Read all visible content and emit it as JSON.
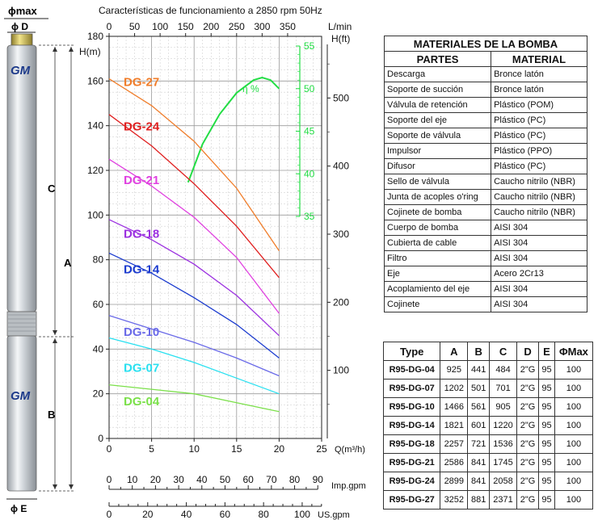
{
  "pump": {
    "labels": {
      "phi_max": "ϕmax",
      "phi_d": "ϕ D",
      "a": "A",
      "b": "B",
      "c": "C",
      "phi_e": "ϕ E",
      "logo": "GM"
    }
  },
  "chart_data": {
    "type": "line",
    "title": "Características de funcionamiento a 2850 rpm 50Hz",
    "ylabel_left": "H(m)",
    "ylabel_right": "H(ft)",
    "xlabel_bottom": "Q(m³/h)",
    "xlabel_top": "L/min",
    "xlabel_imp": "Imp.gpm",
    "xlabel_us": "US.gpm",
    "efficiency_label": "η %",
    "xlim": [
      0,
      25
    ],
    "ylim": [
      0,
      180
    ],
    "x_ticks": [
      0,
      5,
      10,
      15,
      20,
      25
    ],
    "y_ticks": [
      0,
      20,
      40,
      60,
      80,
      100,
      120,
      140,
      160,
      180
    ],
    "lmin_ticks": [
      "0",
      "50",
      "100",
      "150",
      "200",
      "250",
      "300",
      "350"
    ],
    "ft_ticks": [
      "100",
      "200",
      "300",
      "400",
      "500"
    ],
    "eff_ticks": [
      "35",
      "40",
      "45",
      "50",
      "55"
    ],
    "imp_ticks": [
      "0",
      "10",
      "20",
      "30",
      "40",
      "50",
      "60",
      "70",
      "80",
      "90"
    ],
    "us_ticks": [
      "0",
      "20",
      "40",
      "60",
      "80",
      "100"
    ],
    "series": [
      {
        "name": "DG-27",
        "color": "#f07d2a",
        "x": [
          0,
          5,
          10,
          15,
          20
        ],
        "y": [
          161,
          149,
          133,
          112,
          84
        ]
      },
      {
        "name": "DG-24",
        "color": "#e02020",
        "x": [
          0,
          5,
          10,
          15,
          20
        ],
        "y": [
          145,
          131,
          114,
          95,
          72
        ]
      },
      {
        "name": "DG-21",
        "color": "#e040e0",
        "x": [
          0,
          5,
          10,
          15,
          20
        ],
        "y": [
          125,
          113,
          99,
          81,
          56
        ]
      },
      {
        "name": "DG-18",
        "color": "#9b30e0",
        "x": [
          0,
          5,
          10,
          15,
          20
        ],
        "y": [
          98,
          89,
          78,
          64,
          46
        ]
      },
      {
        "name": "DG-14",
        "color": "#1c3ccf",
        "x": [
          0,
          5,
          10,
          15,
          20
        ],
        "y": [
          83,
          74,
          63,
          51,
          36
        ]
      },
      {
        "name": "DG-10",
        "color": "#6a6ae8",
        "x": [
          0,
          5,
          10,
          15,
          20
        ],
        "y": [
          55,
          49,
          43,
          36,
          28
        ]
      },
      {
        "name": "DG-07",
        "color": "#29e0f0",
        "x": [
          0,
          5,
          10,
          15,
          20
        ],
        "y": [
          45,
          40,
          34,
          27,
          20
        ]
      },
      {
        "name": "DG-04",
        "color": "#7be04a",
        "x": [
          0,
          5,
          10,
          15,
          20
        ],
        "y": [
          24,
          22,
          20,
          16,
          12
        ]
      }
    ],
    "efficiency": {
      "color": "#22dd44",
      "x": [
        9.3,
        11,
        13,
        15,
        17,
        18,
        19,
        20
      ],
      "eff": [
        39,
        43.5,
        47,
        49.5,
        51,
        51.3,
        51,
        50
      ]
    }
  },
  "materials": {
    "title": "MATERIALES DE LA BOMBA",
    "headers": [
      "PARTES",
      "MATERIAL"
    ],
    "rows": [
      [
        "Descarga",
        "Bronce latón"
      ],
      [
        "Soporte de succión",
        "Bronce latón"
      ],
      [
        "Válvula de retención",
        "Plástico (POM)"
      ],
      [
        "Soporte del eje",
        "Plástico (PC)"
      ],
      [
        "Soporte de válvula",
        "Plástico (PC)"
      ],
      [
        "Impulsor",
        "Plástico (PPO)"
      ],
      [
        "Difusor",
        "Plástico (PC)"
      ],
      [
        "Sello de válvula",
        "Caucho nitrilo (NBR)"
      ],
      [
        "Junta de acoples o'ring",
        "Caucho nitrilo (NBR)"
      ],
      [
        "Cojinete de bomba",
        "Caucho nitrilo (NBR)"
      ],
      [
        "Cuerpo de bomba",
        "AISI 304"
      ],
      [
        "Cubierta de cable",
        "AISI 304"
      ],
      [
        "Filtro",
        "AISI 304"
      ],
      [
        "Eje",
        "Acero 2Cr13"
      ],
      [
        "Acoplamiento del eje",
        "AISI 304"
      ],
      [
        "Cojinete",
        "AISI 304"
      ]
    ]
  },
  "dimensions": {
    "headers": [
      "Type",
      "A",
      "B",
      "C",
      "D",
      "E",
      "ΦMax"
    ],
    "rows": [
      [
        "R95-DG-04",
        "925",
        "441",
        "484",
        "2\"G",
        "95",
        "100"
      ],
      [
        "R95-DG-07",
        "1202",
        "501",
        "701",
        "2\"G",
        "95",
        "100"
      ],
      [
        "R95-DG-10",
        "1466",
        "561",
        "905",
        "2\"G",
        "95",
        "100"
      ],
      [
        "R95-DG-14",
        "1821",
        "601",
        "1220",
        "2\"G",
        "95",
        "100"
      ],
      [
        "R95-DG-18",
        "2257",
        "721",
        "1536",
        "2\"G",
        "95",
        "100"
      ],
      [
        "R95-DG-21",
        "2586",
        "841",
        "1745",
        "2\"G",
        "95",
        "100"
      ],
      [
        "R95-DG-24",
        "2899",
        "841",
        "2058",
        "2\"G",
        "95",
        "100"
      ],
      [
        "R95-DG-27",
        "3252",
        "881",
        "2371",
        "2\"G",
        "95",
        "100"
      ]
    ]
  }
}
